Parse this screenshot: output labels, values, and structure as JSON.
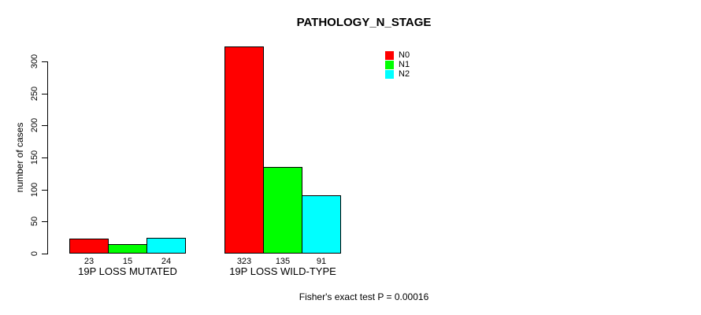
{
  "chart_data": {
    "type": "bar",
    "title": "PATHOLOGY_N_STAGE",
    "xlabel": "",
    "ylabel": "number of cases",
    "categories": [
      "19P LOSS MUTATED",
      "19P LOSS WILD-TYPE"
    ],
    "series": [
      {
        "name": "N0",
        "color": "#ff0000",
        "values": [
          23,
          323
        ]
      },
      {
        "name": "N1",
        "color": "#00ff00",
        "values": [
          15,
          135
        ]
      },
      {
        "name": "N2",
        "color": "#00ffff",
        "values": [
          24,
          91
        ]
      }
    ],
    "y_ticks": [
      0,
      50,
      100,
      150,
      200,
      250,
      300
    ],
    "ylim": [
      0,
      300
    ],
    "grid": false,
    "legend_position": "top-right",
    "bar_border_color": "#000000",
    "background_color": "#ffffff",
    "annotation": "Fisher's exact test P = 0.00016"
  }
}
